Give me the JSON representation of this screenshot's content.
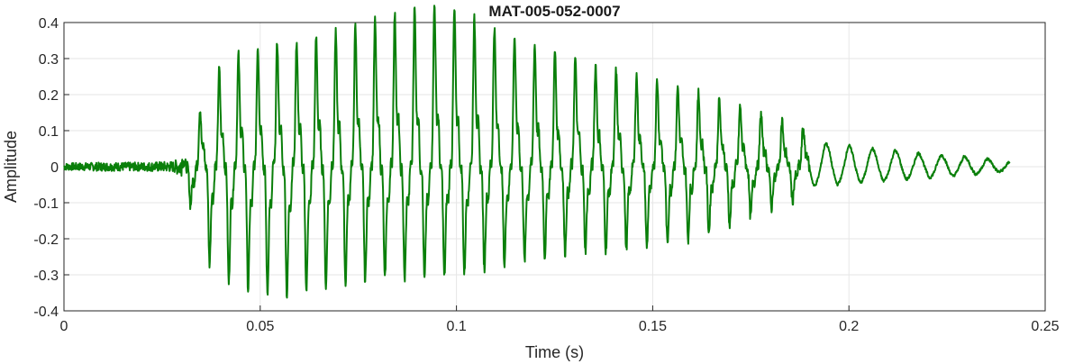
{
  "chart_data": {
    "type": "line",
    "title": "MAT-005-052-0007",
    "xlabel": "Time (s)",
    "ylabel": "Amplitude",
    "xlim": [
      0,
      0.25
    ],
    "ylim": [
      -0.4,
      0.4
    ],
    "xticks": [
      0,
      0.05,
      0.1,
      0.15,
      0.2,
      0.25
    ],
    "xtick_labels": [
      "0",
      "0.05",
      "0.1",
      "0.15",
      "0.2",
      "0.25"
    ],
    "yticks": [
      -0.4,
      -0.3,
      -0.2,
      -0.1,
      0,
      0.1,
      0.2,
      0.3,
      0.4
    ],
    "ytick_labels": [
      "-0.4",
      "-0.3",
      "-0.2",
      "-0.1",
      "0",
      "0.1",
      "0.2",
      "0.3",
      "0.4"
    ],
    "grid": true,
    "line_color": "#0a7f0a",
    "series": [
      {
        "x": [
          0,
          0.01,
          0.02,
          0.028,
          0.031,
          0.033,
          0.036,
          0.038,
          0.04,
          0.045,
          0.05,
          0.056,
          0.06,
          0.07,
          0.08,
          0.09,
          0.093,
          0.1,
          0.11,
          0.12,
          0.13,
          0.14,
          0.15,
          0.16,
          0.17,
          0.18,
          0.19,
          0.2,
          0.21,
          0.22,
          0.23,
          0.241
        ],
        "y_envelope": [
          0.01,
          0.012,
          0.012,
          0.015,
          0.04,
          0.1,
          0.17,
          0.21,
          0.24,
          0.27,
          0.29,
          0.3,
          0.3,
          0.32,
          0.35,
          0.38,
          0.39,
          0.37,
          0.33,
          0.29,
          0.26,
          0.23,
          0.21,
          0.18,
          0.15,
          0.12,
          0.09,
          0.075,
          0.06,
          0.045,
          0.035,
          0.02
        ],
        "y_min_envelope": [
          -0.01,
          -0.012,
          -0.012,
          -0.015,
          -0.05,
          -0.12,
          -0.22,
          -0.24,
          -0.27,
          -0.29,
          -0.3,
          -0.31,
          -0.3,
          -0.28,
          -0.27,
          -0.27,
          -0.27,
          -0.26,
          -0.24,
          -0.22,
          -0.2,
          -0.2,
          -0.19,
          -0.17,
          -0.14,
          -0.1,
          -0.07,
          -0.06,
          -0.05,
          -0.04,
          -0.03,
          -0.015
        ]
      }
    ]
  }
}
